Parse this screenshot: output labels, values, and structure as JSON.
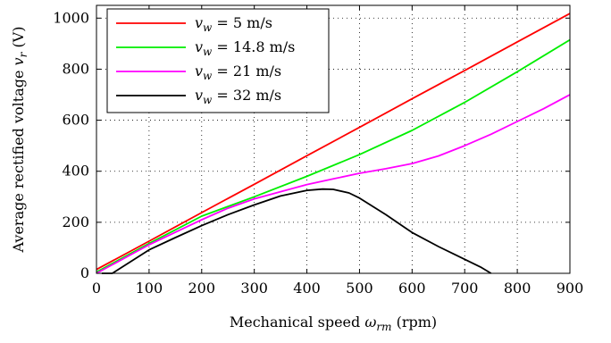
{
  "chart_data": {
    "type": "line",
    "title": "",
    "xlabel": "Mechanical speed ω_rm (rpm)",
    "ylabel": "Average rectified voltage v_r (V)",
    "xlim": [
      0,
      900
    ],
    "ylim": [
      0,
      1050
    ],
    "xticks": [
      0,
      100,
      200,
      300,
      400,
      500,
      600,
      700,
      800,
      900
    ],
    "yticks": [
      0,
      200,
      400,
      600,
      800,
      1000
    ],
    "grid": true,
    "grid_style": "dotted",
    "legend_position": "top-left",
    "series": [
      {
        "name": "v_w = 5 m/s",
        "color": "#ff0000",
        "x": [
          0,
          100,
          200,
          300,
          400,
          500,
          600,
          700,
          800,
          900
        ],
        "y": [
          15,
          126,
          238,
          349,
          461,
          572,
          684,
          795,
          907,
          1018
        ]
      },
      {
        "name": "v_w = 14.8 m/s",
        "color": "#00ee00",
        "x": [
          0,
          100,
          200,
          300,
          400,
          500,
          600,
          700,
          800,
          900
        ],
        "y": [
          5,
          117,
          224,
          300,
          380,
          465,
          560,
          670,
          790,
          915
        ]
      },
      {
        "name": "v_w = 21 m/s",
        "color": "#ff00ff",
        "x": [
          0,
          100,
          200,
          250,
          300,
          350,
          400,
          450,
          500,
          550,
          600,
          650,
          700,
          750,
          800,
          850,
          900
        ],
        "y": [
          0,
          112,
          210,
          255,
          292,
          320,
          348,
          370,
          392,
          410,
          430,
          460,
          500,
          545,
          595,
          645,
          700
        ]
      },
      {
        "name": "v_w = 32 m/s",
        "color": "#000000",
        "x": [
          10,
          30,
          100,
          150,
          200,
          250,
          300,
          350,
          400,
          430,
          450,
          480,
          500,
          550,
          600,
          650,
          700,
          730,
          750
        ],
        "y": [
          0,
          0,
          92,
          140,
          187,
          230,
          268,
          303,
          325,
          330,
          329,
          315,
          295,
          230,
          160,
          105,
          55,
          25,
          0
        ]
      }
    ]
  },
  "legend": {
    "entries": [
      {
        "var": "v",
        "sub": "w",
        "rest": " = 5 m/s"
      },
      {
        "var": "v",
        "sub": "w",
        "rest": " = 14.8 m/s"
      },
      {
        "var": "v",
        "sub": "w",
        "rest": " = 21 m/s"
      },
      {
        "var": "v",
        "sub": "w",
        "rest": " = 32 m/s"
      }
    ]
  },
  "axes_text": {
    "x_main": "Mechanical speed ",
    "x_sym": "ω",
    "x_sub": "rm",
    "x_tail": " (rpm)",
    "y_main": "Average rectified voltage ",
    "y_sym": "v",
    "y_sub": "r",
    "y_tail": " (V)"
  }
}
